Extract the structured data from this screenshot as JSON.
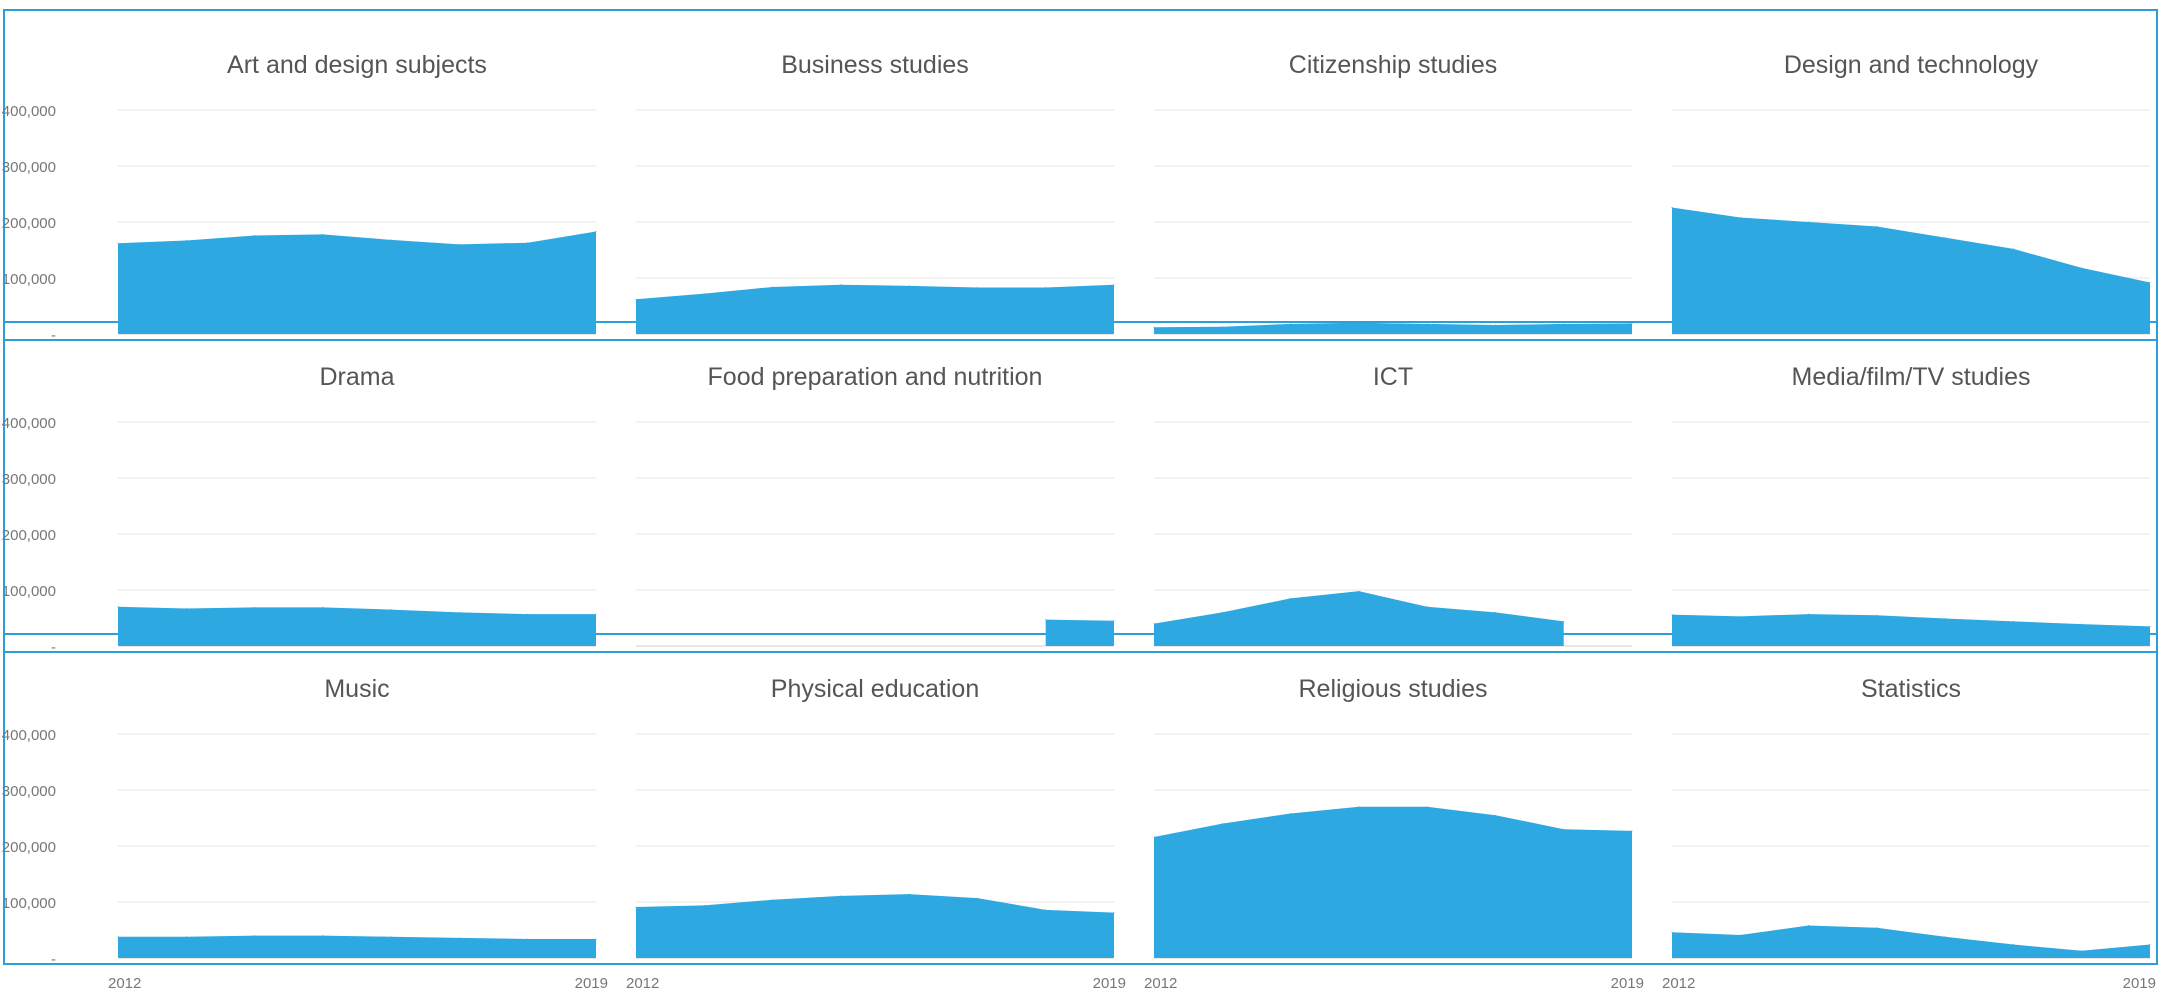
{
  "chart_data": {
    "type": "area",
    "layout": "small-multiples 3 rows x 4 columns",
    "color": "#2ea8e0",
    "ylim": [
      0,
      400000
    ],
    "yticks": [
      0,
      100000,
      200000,
      300000,
      400000
    ],
    "ytick_labels": [
      "-",
      "100,000",
      "200,000",
      "300,000",
      "400,000"
    ],
    "x": [
      2012,
      2013,
      2014,
      2015,
      2016,
      2017,
      2018,
      2019
    ],
    "xtick_labels": [
      "2012",
      "2019"
    ],
    "grid": true,
    "panels": [
      {
        "title": "Art and design subjects",
        "values": [
          162000,
          167000,
          176000,
          178000,
          168000,
          160000,
          163000,
          183000
        ]
      },
      {
        "title": "Business studies",
        "values": [
          62000,
          72000,
          84000,
          88000,
          86000,
          83000,
          83000,
          88000
        ]
      },
      {
        "title": "Citizenship studies",
        "values": [
          12000,
          13000,
          18000,
          20000,
          18000,
          16000,
          18000,
          19000
        ]
      },
      {
        "title": "Design and technology",
        "values": [
          226000,
          208000,
          200000,
          192000,
          172000,
          152000,
          118000,
          92000
        ]
      },
      {
        "title": "Drama",
        "values": [
          70000,
          67000,
          69000,
          69000,
          65000,
          60000,
          57000,
          57000
        ]
      },
      {
        "title": "Food preparation and nutrition",
        "values": [
          null,
          null,
          null,
          null,
          null,
          null,
          47000,
          45000
        ]
      },
      {
        "title": "ICT",
        "values": [
          40000,
          60000,
          85000,
          98000,
          70000,
          60000,
          44000,
          null
        ]
      },
      {
        "title": "Media/film/TV studies",
        "values": [
          56000,
          53000,
          57000,
          55000,
          49000,
          44000,
          39000,
          35000
        ]
      },
      {
        "title": "Music",
        "values": [
          38000,
          38000,
          40000,
          40000,
          38000,
          36000,
          34000,
          34000
        ]
      },
      {
        "title": "Physical education",
        "values": [
          91000,
          94000,
          104000,
          111000,
          114000,
          107000,
          86000,
          81000
        ]
      },
      {
        "title": "Religious studies",
        "values": [
          216000,
          240000,
          258000,
          270000,
          270000,
          255000,
          230000,
          227000
        ]
      },
      {
        "title": "Statistics",
        "values": [
          46000,
          41000,
          58000,
          54000,
          38000,
          24000,
          13000,
          24000
        ]
      }
    ]
  }
}
